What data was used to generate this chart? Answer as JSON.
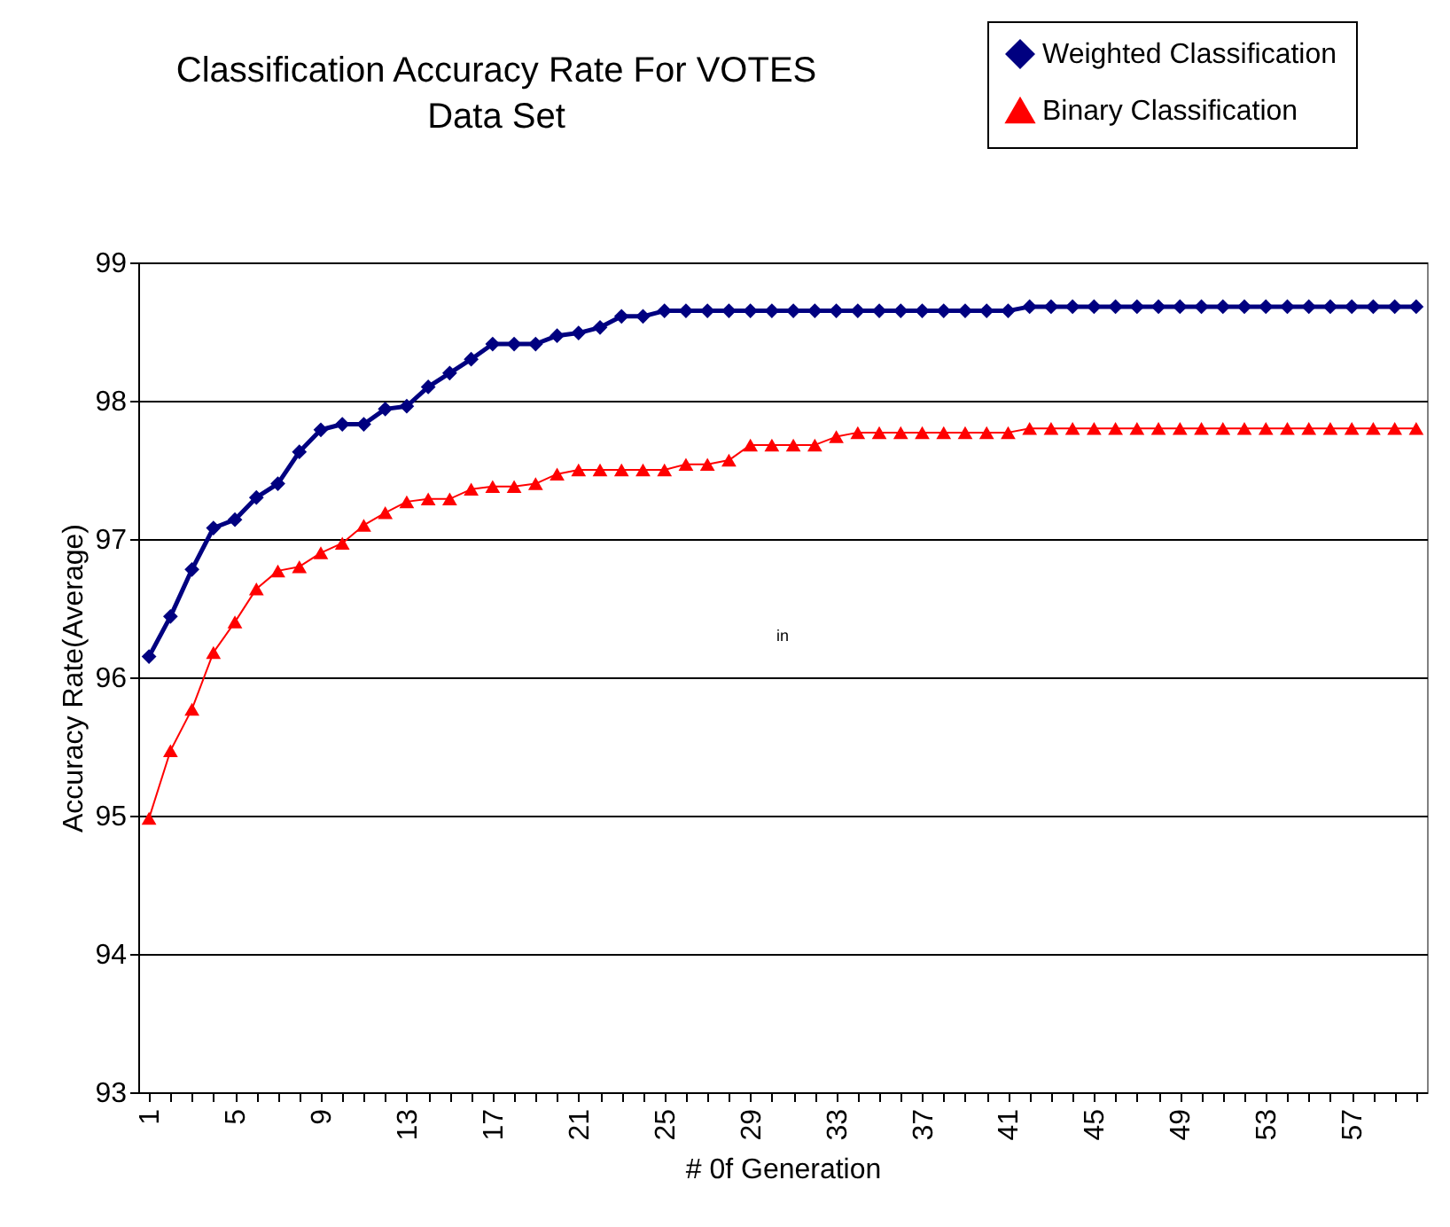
{
  "chart_data": {
    "type": "line",
    "title": "Classification Accuracy Rate For VOTES\nData Set",
    "xlabel": "# 0f Generation",
    "ylabel": "Accuracy Rate(Average)",
    "categories": [
      "1",
      null,
      null,
      null,
      "5",
      null,
      null,
      null,
      "9",
      null,
      null,
      null,
      "13",
      null,
      null,
      null,
      "17",
      null,
      null,
      null,
      "21",
      null,
      null,
      null,
      "25",
      null,
      null,
      null,
      "29",
      null,
      null,
      null,
      "33",
      null,
      null,
      null,
      "37",
      null,
      null,
      null,
      "41",
      null,
      null,
      null,
      "45",
      null,
      null,
      null,
      "49",
      null,
      null,
      null,
      "53",
      null,
      null,
      null,
      "57",
      null,
      null,
      null
    ],
    "series": [
      {
        "name": "Weighted Classification",
        "color": "#000080",
        "marker": "diamond",
        "values": [
          96.15,
          96.44,
          96.78,
          97.08,
          97.14,
          97.3,
          97.4,
          97.63,
          97.79,
          97.83,
          97.83,
          97.94,
          97.96,
          98.1,
          98.2,
          98.3,
          98.41,
          98.41,
          98.41,
          98.47,
          98.49,
          98.53,
          98.61,
          98.61,
          98.65,
          98.65,
          98.65,
          98.65,
          98.65,
          98.65,
          98.65,
          98.65,
          98.65,
          98.65,
          98.65,
          98.65,
          98.65,
          98.65,
          98.65,
          98.65,
          98.65,
          98.68,
          98.68,
          98.68,
          98.68,
          98.68,
          98.68,
          98.68,
          98.68,
          98.68,
          98.68,
          98.68,
          98.68,
          98.68,
          98.68,
          98.68,
          98.68,
          98.68,
          98.68,
          98.68
        ]
      },
      {
        "name": "Binary Classification",
        "color": "#ff0000",
        "marker": "triangle",
        "values": [
          94.98,
          95.47,
          95.77,
          96.18,
          96.4,
          96.64,
          96.77,
          96.8,
          96.9,
          96.97,
          97.1,
          97.19,
          97.27,
          97.29,
          97.29,
          97.36,
          97.38,
          97.38,
          97.4,
          97.47,
          97.5,
          97.5,
          97.5,
          97.5,
          97.5,
          97.54,
          97.54,
          97.57,
          97.68,
          97.68,
          97.68,
          97.68,
          97.74,
          97.77,
          97.77,
          97.77,
          97.77,
          97.77,
          97.77,
          97.77,
          97.77,
          97.8,
          97.8,
          97.8,
          97.8,
          97.8,
          97.8,
          97.8,
          97.8,
          97.8,
          97.8,
          97.8,
          97.8,
          97.8,
          97.8,
          97.8,
          97.8,
          97.8,
          97.8,
          97.8
        ]
      }
    ],
    "ylim": [
      93,
      99
    ],
    "yticks": [
      93,
      94,
      95,
      96,
      97,
      98,
      99
    ],
    "grid": "y",
    "legend": "top right",
    "annotations": [
      "in"
    ]
  }
}
